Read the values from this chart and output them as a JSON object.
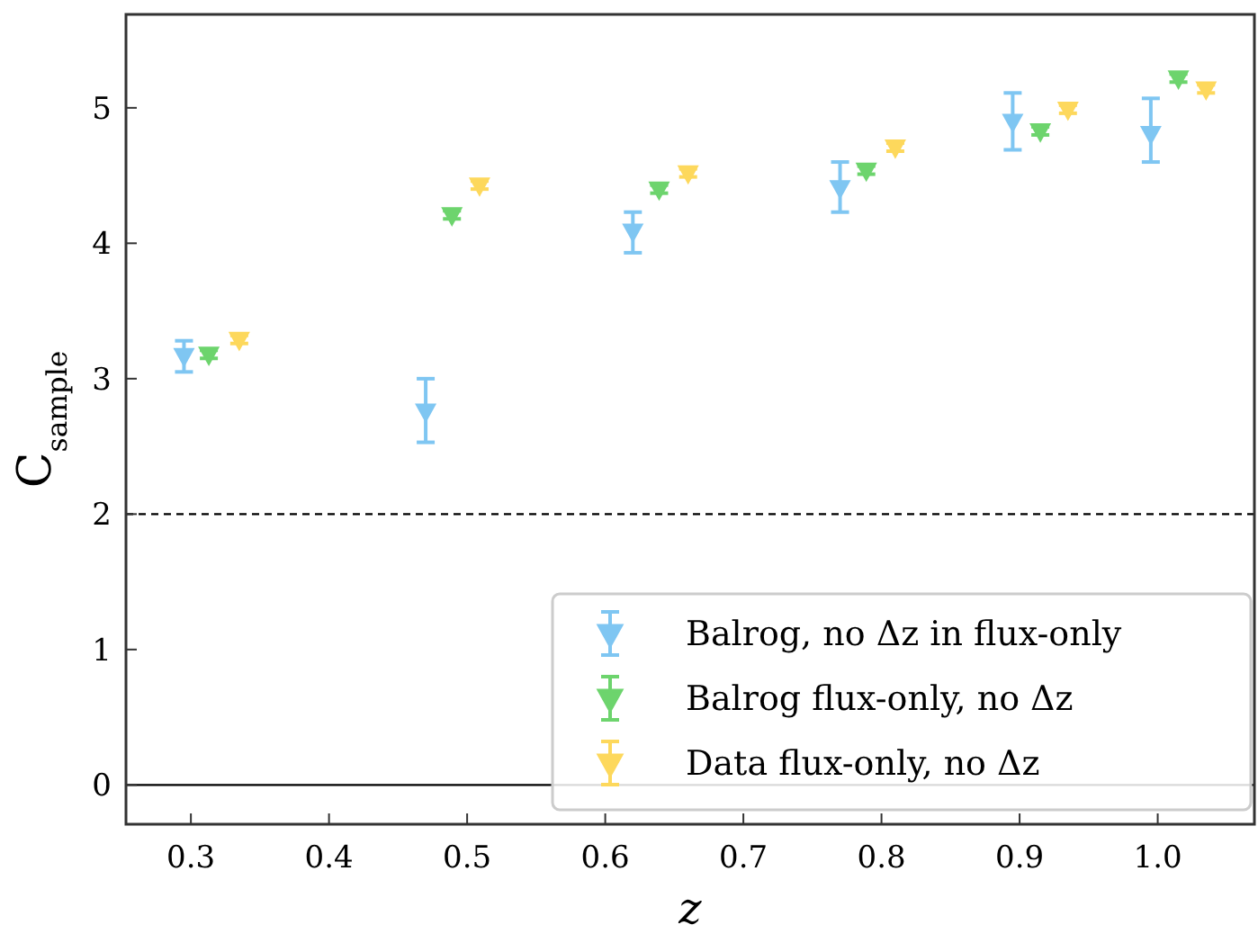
{
  "chart_data": {
    "type": "scatter",
    "xlabel": "z",
    "ylabel": "C$_{sample}$",
    "xlim": [
      0.253,
      1.07
    ],
    "ylim": [
      -0.29,
      5.69
    ],
    "xticks": [
      {
        "value": 0.3,
        "label": "0.3"
      },
      {
        "value": 0.4,
        "label": "0.4"
      },
      {
        "value": 0.5,
        "label": "0.5"
      },
      {
        "value": 0.6,
        "label": "0.6"
      },
      {
        "value": 0.7,
        "label": "0.7"
      },
      {
        "value": 0.8,
        "label": "0.8"
      },
      {
        "value": 0.9,
        "label": "0.9"
      },
      {
        "value": 1.0,
        "label": "1.0"
      }
    ],
    "yticks": [
      0,
      1,
      2,
      3,
      4,
      5
    ],
    "grid": false,
    "legend": "bottom right",
    "marker": "triangle",
    "series": [
      {
        "name": "Balrog, no Δz in flux-only",
        "color": "#7fc6f2",
        "x": [
          0.295,
          0.47,
          0.62,
          0.77,
          0.895,
          0.995
        ],
        "values": [
          3.17,
          2.76,
          4.09,
          4.41,
          4.9,
          4.81
        ],
        "errors": [
          [
            3.05,
            3.28
          ],
          [
            2.53,
            3.0
          ],
          [
            3.93,
            4.23
          ],
          [
            4.23,
            4.6
          ],
          [
            4.69,
            5.11
          ],
          [
            4.6,
            5.07
          ]
        ]
      },
      {
        "name": "Balrog flux-only, no Δz",
        "color": "#6dd46d",
        "x": [
          0.313,
          0.489,
          0.639,
          0.789,
          0.915,
          1.015
        ],
        "values": [
          3.18,
          4.21,
          4.4,
          4.54,
          4.83,
          5.22
        ],
        "errors": [
          0.03,
          0.03,
          0.03,
          0.03,
          0.03,
          0.03
        ]
      },
      {
        "name": "Data flux-only, no Δz",
        "color": "#fdd85c",
        "x": [
          0.335,
          0.509,
          0.66,
          0.81,
          0.935,
          1.035
        ],
        "values": [
          3.29,
          4.43,
          4.52,
          4.71,
          4.99,
          5.14
        ],
        "errors": [
          0.03,
          0.03,
          0.03,
          0.03,
          0.03,
          0.03
        ]
      }
    ],
    "ref_lines": [
      {
        "axis": "y",
        "value": 0,
        "color": "#000000",
        "line_style": "solid"
      },
      {
        "axis": "y",
        "value": 2,
        "color": "#000000",
        "line_style": "dashed"
      }
    ]
  }
}
